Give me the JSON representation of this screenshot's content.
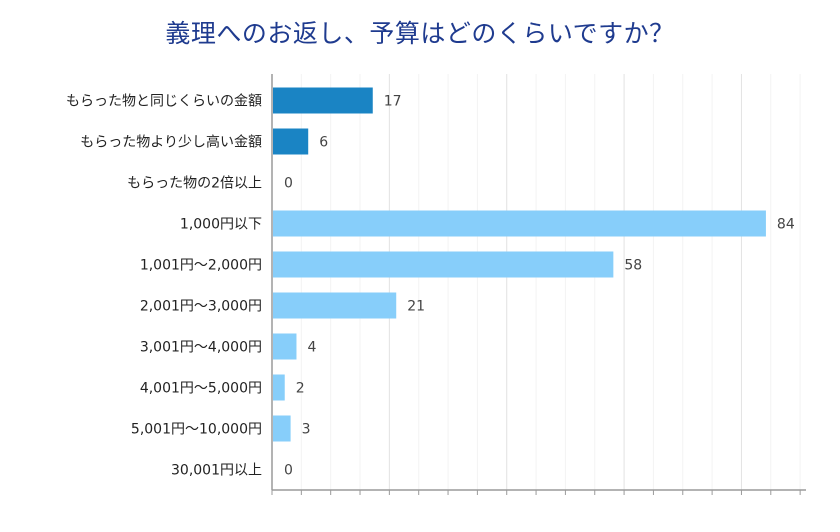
{
  "chart_data": {
    "type": "bar",
    "orientation": "horizontal",
    "title": "義理へのお返し、予算はどのくらいですか？",
    "categories": [
      "もらった物と同じくらいの金額",
      "もらった物より少し高い金額",
      "もらった物の2倍以上",
      "1,000円以下",
      "1,001円～2,000円",
      "2,001円～3,000円",
      "3,001円～4,000円",
      "4,001円～5,000円",
      "5,001円～10,000円",
      "30,001円以上"
    ],
    "values": [
      17,
      6,
      0,
      84,
      58,
      21,
      4,
      2,
      3,
      0
    ],
    "value_labels": [
      "17",
      "6",
      "0",
      "84",
      "58",
      "21",
      "4",
      "2",
      "3",
      "0"
    ],
    "bar_colors": [
      "#1a84c4",
      "#1a84c4",
      "#1a84c4",
      "#87cefa",
      "#87cefa",
      "#87cefa",
      "#87cefa",
      "#87cefa",
      "#87cefa",
      "#87cefa"
    ],
    "xlim": [
      0,
      91
    ],
    "grid": true,
    "legend": "none"
  },
  "colors": {
    "title": "#1f3b8f",
    "primary_bar": "#1a84c4",
    "secondary_bar": "#87cefa",
    "grid": "#e0e0e0",
    "axis": "#888888"
  }
}
